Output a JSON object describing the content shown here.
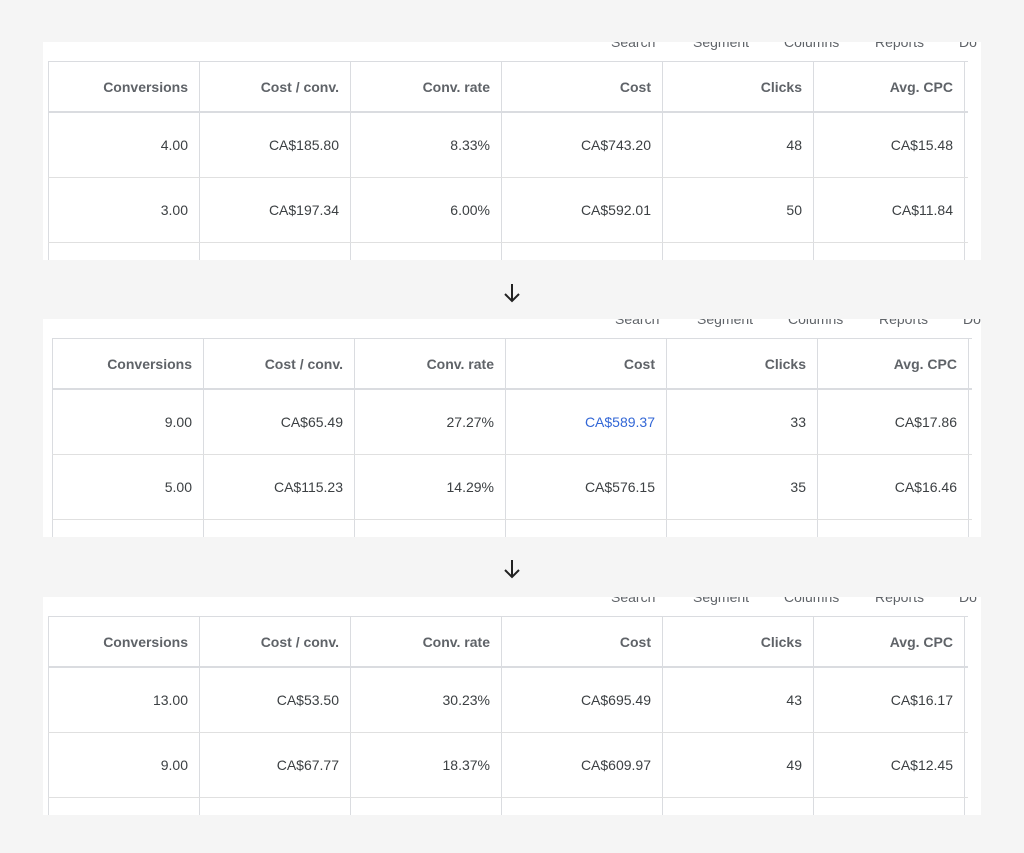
{
  "toolbar": {
    "items": [
      "Search",
      "Segment",
      "Columns",
      "Reports",
      "Do"
    ]
  },
  "columns": [
    "Conversions",
    "Cost / conv.",
    "Conv. rate",
    "Cost",
    "Clicks",
    "Avg. CPC"
  ],
  "colors": {
    "link": "#3367d6",
    "border": "#dadce0"
  },
  "snapshots": [
    {
      "rows": [
        [
          "4.00",
          "CA$185.80",
          "8.33%",
          "CA$743.20",
          "48",
          "CA$15.48"
        ],
        [
          "3.00",
          "CA$197.34",
          "6.00%",
          "CA$592.01",
          "50",
          "CA$11.84"
        ]
      ]
    },
    {
      "rows": [
        [
          "9.00",
          "CA$65.49",
          "27.27%",
          "CA$589.37",
          "33",
          "CA$17.86"
        ],
        [
          "5.00",
          "CA$115.23",
          "14.29%",
          "CA$576.15",
          "35",
          "CA$16.46"
        ]
      ]
    },
    {
      "rows": [
        [
          "13.00",
          "CA$53.50",
          "30.23%",
          "CA$695.49",
          "43",
          "CA$16.17"
        ],
        [
          "9.00",
          "CA$67.77",
          "18.37%",
          "CA$609.97",
          "49",
          "CA$12.45"
        ]
      ]
    }
  ]
}
